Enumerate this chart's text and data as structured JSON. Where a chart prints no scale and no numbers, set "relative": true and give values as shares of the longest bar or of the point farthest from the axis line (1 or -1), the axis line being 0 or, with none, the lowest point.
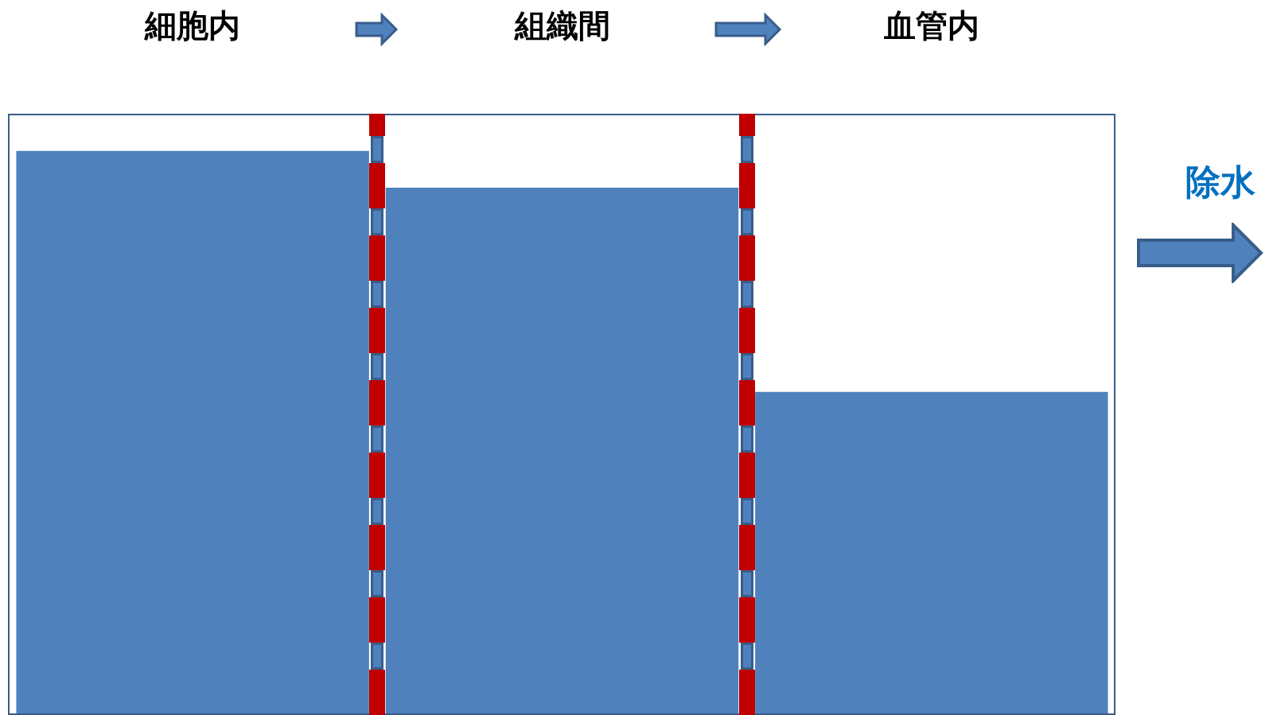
{
  "chart_data": {
    "type": "bar",
    "relative": true,
    "categories": [
      "細胞内",
      "組織間",
      "血管内"
    ],
    "values": [
      1,
      0.935,
      0.573
    ],
    "color": "#4f81bd",
    "legend": false,
    "annotations": [
      "除水"
    ]
  }
}
